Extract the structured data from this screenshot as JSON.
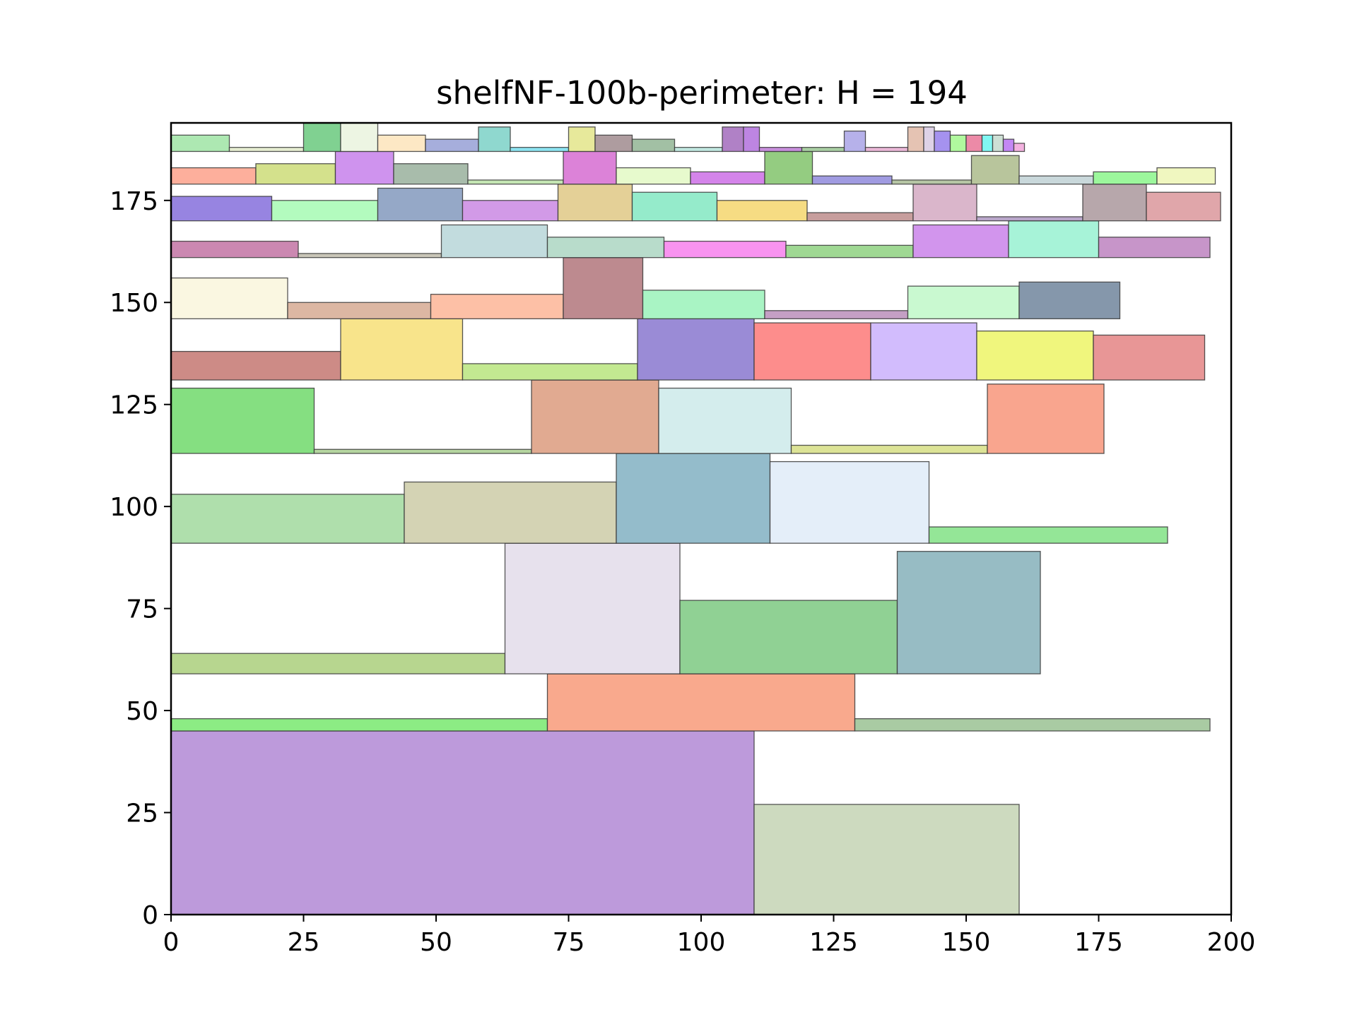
{
  "chart_data": {
    "type": "rectangles",
    "title": "shelfNF-100b-perimeter: H = 194",
    "xlim": [
      0,
      200
    ],
    "ylim": [
      0,
      194
    ],
    "x_ticks": [
      0,
      25,
      50,
      75,
      100,
      125,
      150,
      175,
      200
    ],
    "y_ticks": [
      0,
      25,
      50,
      75,
      100,
      125,
      150,
      175
    ],
    "x_tick_labels": [
      "0",
      "25",
      "50",
      "75",
      "100",
      "125",
      "150",
      "175",
      "200"
    ],
    "y_tick_labels": [
      "0",
      "25",
      "50",
      "75",
      "100",
      "125",
      "150",
      "175"
    ],
    "rects": [
      {
        "x": 0,
        "y": 0,
        "w": 110,
        "h": 45,
        "color": "#bd9adb"
      },
      {
        "x": 110,
        "y": 0,
        "w": 50,
        "h": 27,
        "color": "#cddabf"
      },
      {
        "x": 0,
        "y": 45,
        "w": 71,
        "h": 3,
        "color": "#8cec84"
      },
      {
        "x": 71,
        "y": 45,
        "w": 58,
        "h": 14,
        "color": "#f9a98d"
      },
      {
        "x": 129,
        "y": 45,
        "w": 67,
        "h": 3,
        "color": "#a9cba3"
      },
      {
        "x": 0,
        "y": 59,
        "w": 63,
        "h": 5,
        "color": "#b7d68f"
      },
      {
        "x": 63,
        "y": 59,
        "w": 33,
        "h": 32,
        "color": "#e7e1ed"
      },
      {
        "x": 96,
        "y": 59,
        "w": 41,
        "h": 18,
        "color": "#90d194"
      },
      {
        "x": 137,
        "y": 59,
        "w": 27,
        "h": 30,
        "color": "#97bcc4"
      },
      {
        "x": 0,
        "y": 91,
        "w": 44,
        "h": 12,
        "color": "#afdfac"
      },
      {
        "x": 44,
        "y": 91,
        "w": 40,
        "h": 15,
        "color": "#d4d3b4"
      },
      {
        "x": 84,
        "y": 91,
        "w": 29,
        "h": 22,
        "color": "#94bccb"
      },
      {
        "x": 113,
        "y": 91,
        "w": 30,
        "h": 20,
        "color": "#e4eef9"
      },
      {
        "x": 143,
        "y": 91,
        "w": 45,
        "h": 4,
        "color": "#94e697"
      },
      {
        "x": 0,
        "y": 113,
        "w": 27,
        "h": 16,
        "color": "#85df81"
      },
      {
        "x": 27,
        "y": 113,
        "w": 41,
        "h": 1,
        "color": "#b5d5a0"
      },
      {
        "x": 68,
        "y": 113,
        "w": 24,
        "h": 18,
        "color": "#e1aa91"
      },
      {
        "x": 92,
        "y": 113,
        "w": 25,
        "h": 16,
        "color": "#d4eded"
      },
      {
        "x": 117,
        "y": 113,
        "w": 37,
        "h": 2,
        "color": "#dce396"
      },
      {
        "x": 154,
        "y": 113,
        "w": 22,
        "h": 17,
        "color": "#f9a58e"
      },
      {
        "x": 0,
        "y": 131,
        "w": 32,
        "h": 7,
        "color": "#cd8b86"
      },
      {
        "x": 32,
        "y": 131,
        "w": 23,
        "h": 15,
        "color": "#f8e48b"
      },
      {
        "x": 55,
        "y": 131,
        "w": 33,
        "h": 4,
        "color": "#c3e991"
      },
      {
        "x": 88,
        "y": 131,
        "w": 22,
        "h": 15,
        "color": "#9a8bd6"
      },
      {
        "x": 110,
        "y": 131,
        "w": 22,
        "h": 14,
        "color": "#fd8d8c"
      },
      {
        "x": 132,
        "y": 131,
        "w": 20,
        "h": 14,
        "color": "#d2bcfd"
      },
      {
        "x": 152,
        "y": 131,
        "w": 22,
        "h": 12,
        "color": "#f0f67d"
      },
      {
        "x": 174,
        "y": 131,
        "w": 21,
        "h": 11,
        "color": "#e89696"
      },
      {
        "x": 0,
        "y": 146,
        "w": 22,
        "h": 10,
        "color": "#faf7e1"
      },
      {
        "x": 22,
        "y": 146,
        "w": 27,
        "h": 4,
        "color": "#dcb7a3"
      },
      {
        "x": 49,
        "y": 146,
        "w": 25,
        "h": 6,
        "color": "#fdc0a6"
      },
      {
        "x": 74,
        "y": 146,
        "w": 15,
        "h": 15,
        "color": "#bd8a8f"
      },
      {
        "x": 89,
        "y": 146,
        "w": 23,
        "h": 7,
        "color": "#a9f4c4"
      },
      {
        "x": 112,
        "y": 146,
        "w": 27,
        "h": 2,
        "color": "#c49fc4"
      },
      {
        "x": 139,
        "y": 146,
        "w": 21,
        "h": 8,
        "color": "#c9f9d0"
      },
      {
        "x": 160,
        "y": 146,
        "w": 19,
        "h": 9,
        "color": "#8597ab"
      },
      {
        "x": 0,
        "y": 161,
        "w": 24,
        "h": 4,
        "color": "#cb88b1"
      },
      {
        "x": 24,
        "y": 161,
        "w": 27,
        "h": 1,
        "color": "#c9c6b8"
      },
      {
        "x": 51,
        "y": 161,
        "w": 20,
        "h": 8,
        "color": "#c2dcde"
      },
      {
        "x": 71,
        "y": 161,
        "w": 22,
        "h": 5,
        "color": "#b8dccb"
      },
      {
        "x": 93,
        "y": 161,
        "w": 23,
        "h": 4,
        "color": "#f893f0"
      },
      {
        "x": 116,
        "y": 161,
        "w": 24,
        "h": 3,
        "color": "#9fd893"
      },
      {
        "x": 140,
        "y": 161,
        "w": 18,
        "h": 8,
        "color": "#d295ed"
      },
      {
        "x": 158,
        "y": 161,
        "w": 17,
        "h": 9,
        "color": "#a7f3d8"
      },
      {
        "x": 175,
        "y": 161,
        "w": 21,
        "h": 5,
        "color": "#c795c9"
      },
      {
        "x": 0,
        "y": 170,
        "w": 19,
        "h": 6,
        "color": "#9784e1"
      },
      {
        "x": 19,
        "y": 170,
        "w": 20,
        "h": 5,
        "color": "#b3fbbe"
      },
      {
        "x": 39,
        "y": 170,
        "w": 16,
        "h": 8,
        "color": "#95a8c7"
      },
      {
        "x": 55,
        "y": 170,
        "w": 18,
        "h": 5,
        "color": "#d29ae7"
      },
      {
        "x": 73,
        "y": 170,
        "w": 14,
        "h": 9,
        "color": "#e4d097"
      },
      {
        "x": 87,
        "y": 170,
        "w": 16,
        "h": 7,
        "color": "#95ebcb"
      },
      {
        "x": 103,
        "y": 170,
        "w": 17,
        "h": 5,
        "color": "#f6dc83"
      },
      {
        "x": 120,
        "y": 170,
        "w": 20,
        "h": 2,
        "color": "#c79e9d"
      },
      {
        "x": 140,
        "y": 170,
        "w": 12,
        "h": 9,
        "color": "#dab6cb"
      },
      {
        "x": 152,
        "y": 170,
        "w": 20,
        "h": 1,
        "color": "#b9a6ca"
      },
      {
        "x": 172,
        "y": 170,
        "w": 12,
        "h": 9,
        "color": "#b7a7ab"
      },
      {
        "x": 184,
        "y": 170,
        "w": 14,
        "h": 7,
        "color": "#e0a6aa"
      },
      {
        "x": 0,
        "y": 179,
        "w": 16,
        "h": 4,
        "color": "#fdaf9c"
      },
      {
        "x": 16,
        "y": 179,
        "w": 15,
        "h": 5,
        "color": "#d4e18c"
      },
      {
        "x": 31,
        "y": 179,
        "w": 11,
        "h": 8,
        "color": "#cf93ee"
      },
      {
        "x": 42,
        "y": 179,
        "w": 14,
        "h": 5,
        "color": "#a8bcab"
      },
      {
        "x": 56,
        "y": 179,
        "w": 18,
        "h": 1,
        "color": "#c5e6b4"
      },
      {
        "x": 74,
        "y": 179,
        "w": 10,
        "h": 8,
        "color": "#dc82d8"
      },
      {
        "x": 84,
        "y": 179,
        "w": 14,
        "h": 4,
        "color": "#e7facd"
      },
      {
        "x": 98,
        "y": 179,
        "w": 14,
        "h": 3,
        "color": "#d484ea"
      },
      {
        "x": 112,
        "y": 179,
        "w": 9,
        "h": 8,
        "color": "#94cc81"
      },
      {
        "x": 121,
        "y": 179,
        "w": 15,
        "h": 2,
        "color": "#a09be1"
      },
      {
        "x": 136,
        "y": 179,
        "w": 15,
        "h": 1,
        "color": "#b6c6a5"
      },
      {
        "x": 151,
        "y": 179,
        "w": 9,
        "h": 7,
        "color": "#b8c59c"
      },
      {
        "x": 160,
        "y": 179,
        "w": 14,
        "h": 2,
        "color": "#c9d8db"
      },
      {
        "x": 174,
        "y": 179,
        "w": 12,
        "h": 3,
        "color": "#9cf79c"
      },
      {
        "x": 186,
        "y": 179,
        "w": 11,
        "h": 4,
        "color": "#f0f7c0"
      },
      {
        "x": 0,
        "y": 187,
        "w": 11,
        "h": 4,
        "color": "#ade8b2"
      },
      {
        "x": 11,
        "y": 187,
        "w": 14,
        "h": 1,
        "color": "#e6edd1"
      },
      {
        "x": 25,
        "y": 187,
        "w": 7,
        "h": 7,
        "color": "#80d191"
      },
      {
        "x": 32,
        "y": 187,
        "w": 7,
        "h": 7,
        "color": "#edf5e3"
      },
      {
        "x": 39,
        "y": 187,
        "w": 9,
        "h": 4,
        "color": "#fde8c5"
      },
      {
        "x": 48,
        "y": 187,
        "w": 10,
        "h": 3,
        "color": "#a6aedc"
      },
      {
        "x": 58,
        "y": 187,
        "w": 6,
        "h": 6,
        "color": "#8fd8cf"
      },
      {
        "x": 64,
        "y": 187,
        "w": 11,
        "h": 1,
        "color": "#8ce4f1"
      },
      {
        "x": 75,
        "y": 187,
        "w": 5,
        "h": 6,
        "color": "#e7e99b"
      },
      {
        "x": 80,
        "y": 187,
        "w": 7,
        "h": 4,
        "color": "#ae9c9f"
      },
      {
        "x": 87,
        "y": 187,
        "w": 8,
        "h": 3,
        "color": "#a2c0a4"
      },
      {
        "x": 95,
        "y": 187,
        "w": 9,
        "h": 1,
        "color": "#c1e8e1"
      },
      {
        "x": 104,
        "y": 187,
        "w": 4,
        "h": 6,
        "color": "#b081c6"
      },
      {
        "x": 108,
        "y": 187,
        "w": 3,
        "h": 6,
        "color": "#bd85e2"
      },
      {
        "x": 111,
        "y": 187,
        "w": 8,
        "h": 1,
        "color": "#c78edc"
      },
      {
        "x": 119,
        "y": 187,
        "w": 8,
        "h": 1,
        "color": "#a9cfa3"
      },
      {
        "x": 127,
        "y": 187,
        "w": 4,
        "h": 5,
        "color": "#b6b1ea"
      },
      {
        "x": 131,
        "y": 187,
        "w": 8,
        "h": 1,
        "color": "#eab7d7"
      },
      {
        "x": 139,
        "y": 187,
        "w": 3,
        "h": 6,
        "color": "#e5c3b3"
      },
      {
        "x": 142,
        "y": 187,
        "w": 2,
        "h": 6,
        "color": "#ded2e7"
      },
      {
        "x": 144,
        "y": 187,
        "w": 3,
        "h": 5,
        "color": "#a592ef"
      },
      {
        "x": 147,
        "y": 187,
        "w": 3,
        "h": 4,
        "color": "#b0f99e"
      },
      {
        "x": 150,
        "y": 187,
        "w": 3,
        "h": 4,
        "color": "#ec8aa7"
      },
      {
        "x": 153,
        "y": 187,
        "w": 2,
        "h": 4,
        "color": "#80f7f3"
      },
      {
        "x": 155,
        "y": 187,
        "w": 2,
        "h": 4,
        "color": "#cddfd5"
      },
      {
        "x": 157,
        "y": 187,
        "w": 2,
        "h": 3,
        "color": "#c387f4"
      },
      {
        "x": 159,
        "y": 187,
        "w": 2,
        "h": 2,
        "color": "#f3b1df"
      }
    ]
  }
}
